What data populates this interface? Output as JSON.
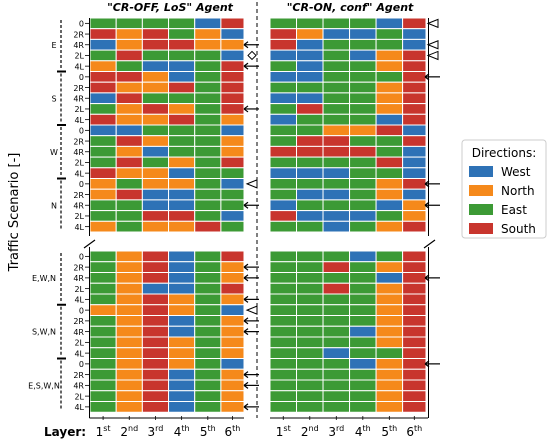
{
  "chart_data": {
    "type": "heatmap",
    "panel_titles": [
      "\"CR-OFF, LoS\" Agent",
      "\"CR-ON, conf\" Agent"
    ],
    "ylabel": "Traffic Scenario [-]",
    "xlabel": "Layer:",
    "x_ticks": [
      {
        "base": "1",
        "sup": "st"
      },
      {
        "base": "2",
        "sup": "nd"
      },
      {
        "base": "3",
        "sup": "rd"
      },
      {
        "base": "4",
        "sup": "th"
      },
      {
        "base": "5",
        "sup": "th"
      },
      {
        "base": "6",
        "sup": "th"
      }
    ],
    "row_labels": [
      "0",
      "2R",
      "4R",
      "2L",
      "4L"
    ],
    "group_labels_top": [
      "E",
      "S",
      "W",
      "N"
    ],
    "group_labels_bottom": [
      "E,W,N",
      "S,W,N",
      "E,S,W,N"
    ],
    "legend": {
      "title": "Directions:",
      "entries": [
        {
          "name": "West",
          "color": "#2E72B6"
        },
        {
          "name": "North",
          "color": "#F5891B"
        },
        {
          "name": "East",
          "color": "#3C9A35"
        },
        {
          "name": "South",
          "color": "#C8352D"
        }
      ]
    },
    "panel_left_top": [
      [
        2,
        2,
        2,
        2,
        0,
        3
      ],
      [
        3,
        1,
        3,
        2,
        1,
        0
      ],
      [
        0,
        1,
        3,
        3,
        1,
        1
      ],
      [
        2,
        3,
        2,
        2,
        2,
        0
      ],
      [
        1,
        2,
        0,
        0,
        2,
        3
      ],
      [
        3,
        3,
        1,
        0,
        2,
        3
      ],
      [
        3,
        1,
        1,
        3,
        2,
        3
      ],
      [
        0,
        3,
        2,
        2,
        2,
        3
      ],
      [
        2,
        1,
        3,
        1,
        2,
        3
      ],
      [
        3,
        1,
        1,
        3,
        2,
        1
      ],
      [
        0,
        0,
        2,
        2,
        2,
        0
      ],
      [
        2,
        3,
        1,
        2,
        2,
        1
      ],
      [
        2,
        1,
        0,
        2,
        2,
        1
      ],
      [
        2,
        3,
        2,
        1,
        2,
        3
      ],
      [
        3,
        1,
        1,
        0,
        2,
        2
      ],
      [
        1,
        2,
        1,
        1,
        2,
        0
      ],
      [
        1,
        3,
        0,
        0,
        2,
        2
      ],
      [
        2,
        2,
        0,
        0,
        2,
        2
      ],
      [
        2,
        2,
        3,
        3,
        2,
        0
      ],
      [
        1,
        2,
        1,
        1,
        3,
        2
      ]
    ],
    "panel_right_top": [
      [
        2,
        2,
        2,
        2,
        0,
        3
      ],
      [
        3,
        1,
        0,
        0,
        2,
        0
      ],
      [
        3,
        0,
        2,
        2,
        2,
        0
      ],
      [
        0,
        0,
        2,
        0,
        1,
        3
      ],
      [
        2,
        0,
        2,
        2,
        1,
        3
      ],
      [
        0,
        0,
        2,
        2,
        2,
        3
      ],
      [
        2,
        2,
        2,
        2,
        1,
        3
      ],
      [
        0,
        0,
        2,
        2,
        1,
        3
      ],
      [
        2,
        3,
        2,
        2,
        1,
        3
      ],
      [
        0,
        2,
        2,
        2,
        0,
        3
      ],
      [
        2,
        2,
        1,
        1,
        3,
        0
      ],
      [
        2,
        3,
        3,
        2,
        2,
        3
      ],
      [
        3,
        3,
        3,
        3,
        2,
        0
      ],
      [
        2,
        2,
        2,
        2,
        3,
        0
      ],
      [
        0,
        0,
        0,
        2,
        2,
        0
      ],
      [
        2,
        2,
        2,
        2,
        1,
        3
      ],
      [
        2,
        0,
        0,
        2,
        1,
        0
      ],
      [
        0,
        2,
        2,
        2,
        0,
        1
      ],
      [
        3,
        0,
        0,
        0,
        2,
        1
      ],
      [
        2,
        2,
        0,
        2,
        1,
        3
      ]
    ],
    "panel_left_bottom": [
      [
        2,
        1,
        3,
        0,
        2,
        3
      ],
      [
        2,
        1,
        3,
        0,
        2,
        1
      ],
      [
        2,
        1,
        3,
        0,
        2,
        1
      ],
      [
        2,
        1,
        0,
        0,
        2,
        3
      ],
      [
        2,
        1,
        3,
        1,
        2,
        1
      ],
      [
        1,
        1,
        3,
        1,
        2,
        0
      ],
      [
        2,
        1,
        3,
        0,
        2,
        1
      ],
      [
        2,
        1,
        3,
        0,
        2,
        1
      ],
      [
        2,
        1,
        3,
        1,
        2,
        1
      ],
      [
        2,
        1,
        3,
        1,
        2,
        1
      ],
      [
        2,
        1,
        3,
        1,
        2,
        0
      ],
      [
        2,
        1,
        3,
        0,
        2,
        1
      ],
      [
        2,
        1,
        3,
        0,
        2,
        1
      ],
      [
        2,
        1,
        3,
        0,
        2,
        1
      ],
      [
        2,
        1,
        3,
        0,
        2,
        1
      ]
    ],
    "panel_right_bottom": [
      [
        2,
        2,
        2,
        0,
        2,
        3
      ],
      [
        2,
        2,
        3,
        2,
        1,
        3
      ],
      [
        2,
        2,
        2,
        2,
        0,
        3
      ],
      [
        2,
        2,
        3,
        2,
        1,
        3
      ],
      [
        2,
        2,
        2,
        2,
        1,
        3
      ],
      [
        2,
        2,
        2,
        2,
        1,
        3
      ],
      [
        2,
        2,
        2,
        2,
        1,
        3
      ],
      [
        2,
        2,
        2,
        0,
        1,
        3
      ],
      [
        2,
        2,
        2,
        2,
        1,
        3
      ],
      [
        2,
        2,
        0,
        2,
        2,
        3
      ],
      [
        2,
        2,
        2,
        0,
        1,
        3
      ],
      [
        2,
        2,
        2,
        2,
        1,
        3
      ],
      [
        2,
        2,
        2,
        2,
        1,
        3
      ],
      [
        2,
        2,
        2,
        2,
        1,
        3
      ],
      [
        2,
        2,
        2,
        2,
        1,
        3
      ]
    ],
    "markers": {
      "left_top": [
        {
          "row": 2,
          "marker": "arrow"
        },
        {
          "row": 3,
          "marker": "diamond"
        },
        {
          "row": 4,
          "marker": "arrow"
        },
        {
          "row": 8,
          "marker": "arrow"
        },
        {
          "row": 15,
          "marker": "triangle"
        },
        {
          "row": 17,
          "marker": "arrow"
        }
      ],
      "right_top": [
        {
          "row": 0,
          "marker": "triangle"
        },
        {
          "row": 2,
          "marker": "triangle"
        },
        {
          "row": 3,
          "marker": "triangle"
        },
        {
          "row": 5,
          "marker": "arrow"
        },
        {
          "row": 15,
          "marker": "arrow"
        },
        {
          "row": 17,
          "marker": "arrow"
        }
      ],
      "left_bottom": [
        {
          "row": 1,
          "marker": "arrow"
        },
        {
          "row": 2,
          "marker": "arrow"
        },
        {
          "row": 4,
          "marker": "arrow"
        },
        {
          "row": 5,
          "marker": "triangle"
        },
        {
          "row": 6,
          "marker": "arrow"
        },
        {
          "row": 7,
          "marker": "arrow"
        },
        {
          "row": 11,
          "marker": "arrow"
        },
        {
          "row": 12,
          "marker": "arrow"
        },
        {
          "row": 14,
          "marker": "arrow"
        }
      ],
      "right_bottom": [
        {
          "row": 2,
          "marker": "arrow"
        },
        {
          "row": 10,
          "marker": "arrow"
        }
      ]
    }
  }
}
